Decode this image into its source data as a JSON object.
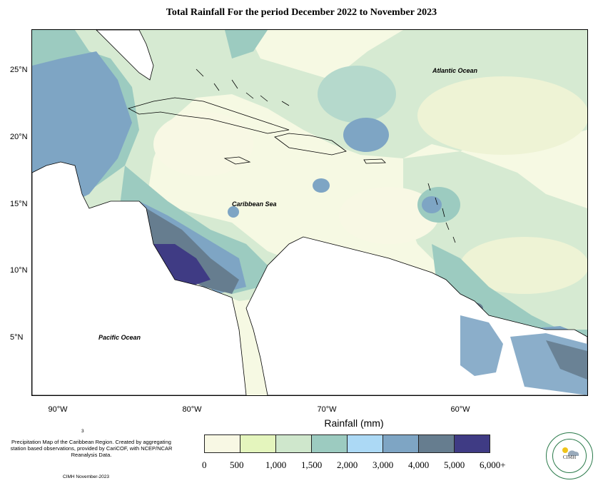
{
  "title": "Total Rainfall For the period December 2022 to November 2023",
  "map_labels": {
    "atlantic": "Atlantic Ocean",
    "caribbean": "Caribbean Sea",
    "pacific": "Pacific Ocean"
  },
  "y_ticks": [
    "25°N",
    "20°N",
    "15°N",
    "10°N",
    "5°N"
  ],
  "x_ticks": [
    "90°W",
    "80°W",
    "70°W",
    "60°W"
  ],
  "legend": {
    "title": "Rainfall (mm)",
    "colors": [
      "#f8f8e4",
      "#e4f5bd",
      "#cfe7cc",
      "#9ccbc0",
      "#acd9f5",
      "#7ea5c4",
      "#667d8f",
      "#3f3b84"
    ],
    "ticks": [
      "0",
      "500",
      "1,000",
      "1,500",
      "2,000",
      "3,000",
      "4,000",
      "5,000",
      "6,000+"
    ]
  },
  "credit": {
    "superscript": "3",
    "text": "Precipitation Map of the Caribbean Region. Created by aggregating station based observations, provided by CariCOF, with NCEP/NCAR Reanalysis Data.",
    "date": "CIMH November-2023",
    "logo_text": "CIMH"
  }
}
